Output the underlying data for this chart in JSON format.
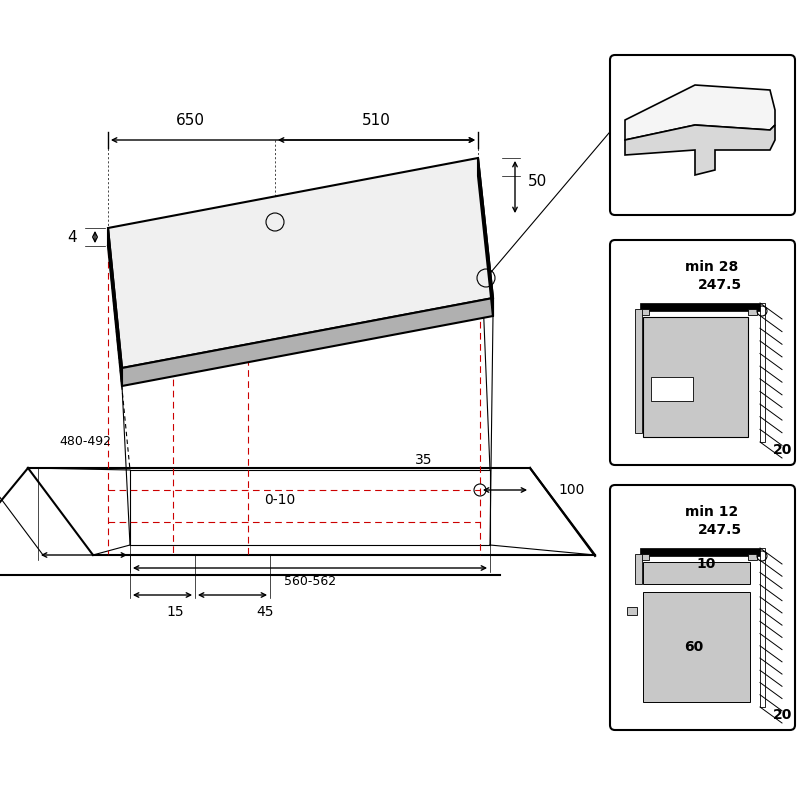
{
  "bg_color": "#ffffff",
  "lc": "#000000",
  "rc": "#cc0000",
  "lgray": "#c8c8c8",
  "mgray": "#b0b0b0",
  "dgray": "#888888"
}
